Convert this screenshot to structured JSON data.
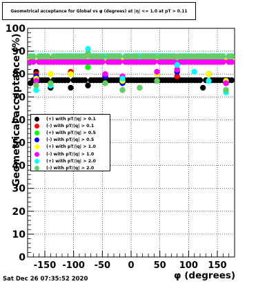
{
  "title": "Geometrical acceptance for Global vs φ (degrees) at |η| <= 1.0 at pT > 0.11",
  "footer": "Sat Dec 26 07:35:52 2020",
  "chart_data": {
    "type": "scatter",
    "title": "Geometrical acceptance for Global vs φ (degrees) at |η| <= 1.0 at pT > 0.11",
    "xlabel": "φ (degrees)",
    "ylabel": "Geometrical acceptance (%)",
    "xlim": [
      -180,
      180
    ],
    "ylim": [
      0,
      100
    ],
    "xticks": [
      -150,
      -100,
      -50,
      0,
      50,
      100,
      150
    ],
    "yticks": [
      0,
      10,
      20,
      30,
      40,
      50,
      60,
      70,
      80,
      90,
      100
    ],
    "xtick_labels": [
      "-150",
      "-100",
      "-50",
      "0",
      "50",
      "100",
      "150"
    ],
    "ytick_labels": [
      "0",
      "10",
      "20",
      "30",
      "40",
      "50",
      "60",
      "70",
      "80",
      "90",
      "100"
    ],
    "grid": true,
    "legend_position": "left",
    "series": [
      {
        "name": "(+) with pT/|q| > 0.1",
        "color": "#000000",
        "baseline": 78,
        "outliers": [
          [
            -175,
            76
          ],
          [
            -165,
            81
          ],
          [
            -140,
            74
          ],
          [
            -105,
            74
          ],
          [
            -75,
            75
          ],
          [
            125,
            74
          ],
          [
            135,
            80
          ]
        ]
      },
      {
        "name": "(-) with pT/|q| > 0.1",
        "color": "#ff0000",
        "baseline": 85,
        "outliers": [
          [
            -165,
            80
          ],
          [
            -105,
            81
          ],
          [
            -45,
            79
          ],
          [
            -15,
            77
          ],
          [
            45,
            81
          ],
          [
            80,
            79
          ],
          [
            135,
            80
          ],
          [
            165,
            77
          ]
        ]
      },
      {
        "name": "(+) with pT/|q| > 0.5",
        "color": "#00ff00",
        "baseline": 86,
        "outliers": [
          [
            -165,
            73
          ],
          [
            -140,
            80
          ],
          [
            -75,
            83
          ],
          [
            -45,
            76
          ],
          [
            -15,
            73
          ],
          [
            15,
            74
          ],
          [
            45,
            77
          ],
          [
            165,
            73
          ]
        ]
      },
      {
        "name": "(-) with pT/|q| > 0.5",
        "color": "#0000ff",
        "baseline": 85.5,
        "outliers": [
          [
            -165,
            79
          ],
          [
            -105,
            80
          ],
          [
            -45,
            79
          ],
          [
            -15,
            76
          ],
          [
            45,
            80
          ],
          [
            80,
            81
          ],
          [
            165,
            76
          ]
        ]
      },
      {
        "name": "(+) with pT/|q| > 1.0",
        "color": "#ffff00",
        "baseline": 86.5,
        "outliers": [
          [
            -165,
            78
          ],
          [
            -140,
            80
          ],
          [
            -105,
            80
          ],
          [
            -15,
            77
          ],
          [
            45,
            80
          ],
          [
            80,
            82
          ],
          [
            135,
            80
          ],
          [
            165,
            77
          ]
        ]
      },
      {
        "name": "(-) with pT/|q| > 1.0",
        "color": "#ff00ff",
        "baseline": 86,
        "outliers": [
          [
            -165,
            77
          ],
          [
            -45,
            80
          ],
          [
            -15,
            79
          ],
          [
            45,
            81
          ],
          [
            80,
            82
          ],
          [
            165,
            76
          ]
        ]
      },
      {
        "name": "(+) with pT/|q| > 2.0",
        "color": "#00ffff",
        "baseline": 87.5,
        "outliers": [
          [
            -165,
            73
          ],
          [
            -140,
            75
          ],
          [
            -75,
            91
          ],
          [
            -15,
            78
          ],
          [
            80,
            84
          ],
          [
            110,
            81
          ],
          [
            135,
            77
          ],
          [
            165,
            72
          ]
        ]
      },
      {
        "name": "(-) with pT/|q| > 2.0",
        "color": "#66cc66",
        "baseline": 88,
        "outliers": [
          [
            -165,
            75
          ],
          [
            -140,
            76
          ],
          [
            -75,
            89
          ],
          [
            -45,
            76
          ],
          [
            -15,
            73
          ],
          [
            15,
            74
          ],
          [
            45,
            77
          ],
          [
            165,
            73
          ]
        ]
      }
    ]
  }
}
